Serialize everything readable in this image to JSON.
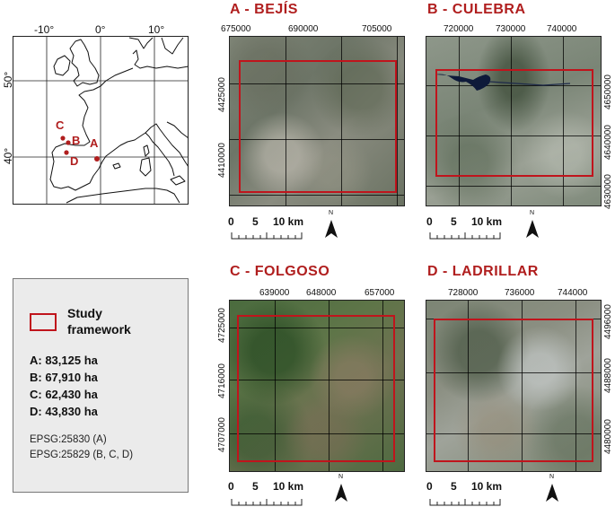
{
  "overview": {
    "lon_labels": [
      "-10°",
      "0°",
      "10°"
    ],
    "lat_labels": [
      "50°",
      "40°"
    ],
    "sites": [
      {
        "label": "A"
      },
      {
        "label": "B"
      },
      {
        "label": "C"
      },
      {
        "label": "D"
      }
    ],
    "colors": {
      "site": "#b01e1e",
      "coast": "#111111"
    }
  },
  "panels": [
    {
      "title": "A - BEJÍS",
      "x_ticks": [
        "675000",
        "690000",
        "705000"
      ],
      "y_ticks": [
        "4425000",
        "4410000"
      ],
      "scale": {
        "labels": [
          "0",
          "5",
          "10 km"
        ]
      },
      "north": "N",
      "tone": "arid"
    },
    {
      "title": "B - CULEBRA",
      "x_ticks": [
        "720000",
        "730000",
        "740000"
      ],
      "y_ticks": [
        "4650000",
        "4640000",
        "4630000"
      ],
      "scale": {
        "labels": [
          "0",
          "5",
          "10 km"
        ]
      },
      "north": "N",
      "tone": "green-grey"
    },
    {
      "title": "C - FOLGOSO",
      "x_ticks": [
        "639000",
        "648000",
        "657000"
      ],
      "y_ticks": [
        "4725000",
        "4716000",
        "4707000"
      ],
      "scale": {
        "labels": [
          "0",
          "5",
          "10 km"
        ]
      },
      "north": "N",
      "tone": "green"
    },
    {
      "title": "D - LADRILLAR",
      "x_ticks": [
        "728000",
        "736000",
        "744000"
      ],
      "y_ticks": [
        "4496000",
        "4488000",
        "4480000"
      ],
      "scale": {
        "labels": [
          "0",
          "5",
          "10 km"
        ]
      },
      "north": "N",
      "tone": "mixed"
    }
  ],
  "legend": {
    "frame_label_line1": "Study",
    "frame_label_line2": "framework",
    "areas": [
      "A: 83,125 ha",
      "B: 67,910 ha",
      "C: 62,430 ha",
      "D: 43,830 ha"
    ],
    "epsg": [
      "EPSG:25830 (A)",
      "EPSG:25829 (B, C, D)"
    ],
    "frame_color": "#c0141c"
  }
}
